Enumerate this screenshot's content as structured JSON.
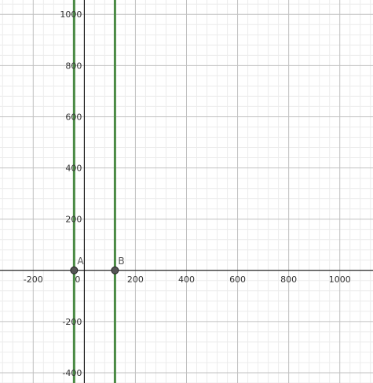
{
  "chart_data": {
    "type": "scatter",
    "xlim": [
      -330,
      1130
    ],
    "ylim": [
      -440,
      1056
    ],
    "grid": true,
    "x_ticks": [
      -200,
      200,
      400,
      600,
      800,
      1000
    ],
    "x_tick_labels": [
      "-200",
      "200",
      "400",
      "600",
      "800",
      "1000"
    ],
    "y_ticks": [
      -400,
      -200,
      200,
      400,
      600,
      800,
      1000
    ],
    "y_tick_labels": [
      "-400",
      "-200",
      "200",
      "400",
      "600",
      "800",
      "1000"
    ],
    "origin_label": "0",
    "points": [
      {
        "name": "A",
        "x": -40,
        "y": 0
      },
      {
        "name": "B",
        "x": 120,
        "y": 0
      }
    ],
    "vertical_lines": [
      {
        "x": -40,
        "color": "#4a8a44"
      },
      {
        "x": 120,
        "color": "#4a8a44"
      }
    ]
  },
  "colors": {
    "grid_major": "#c0c0c0",
    "grid_minor": "#ececec",
    "axis": "#000000",
    "point_fill": "#555555",
    "point_stroke": "#222222"
  }
}
